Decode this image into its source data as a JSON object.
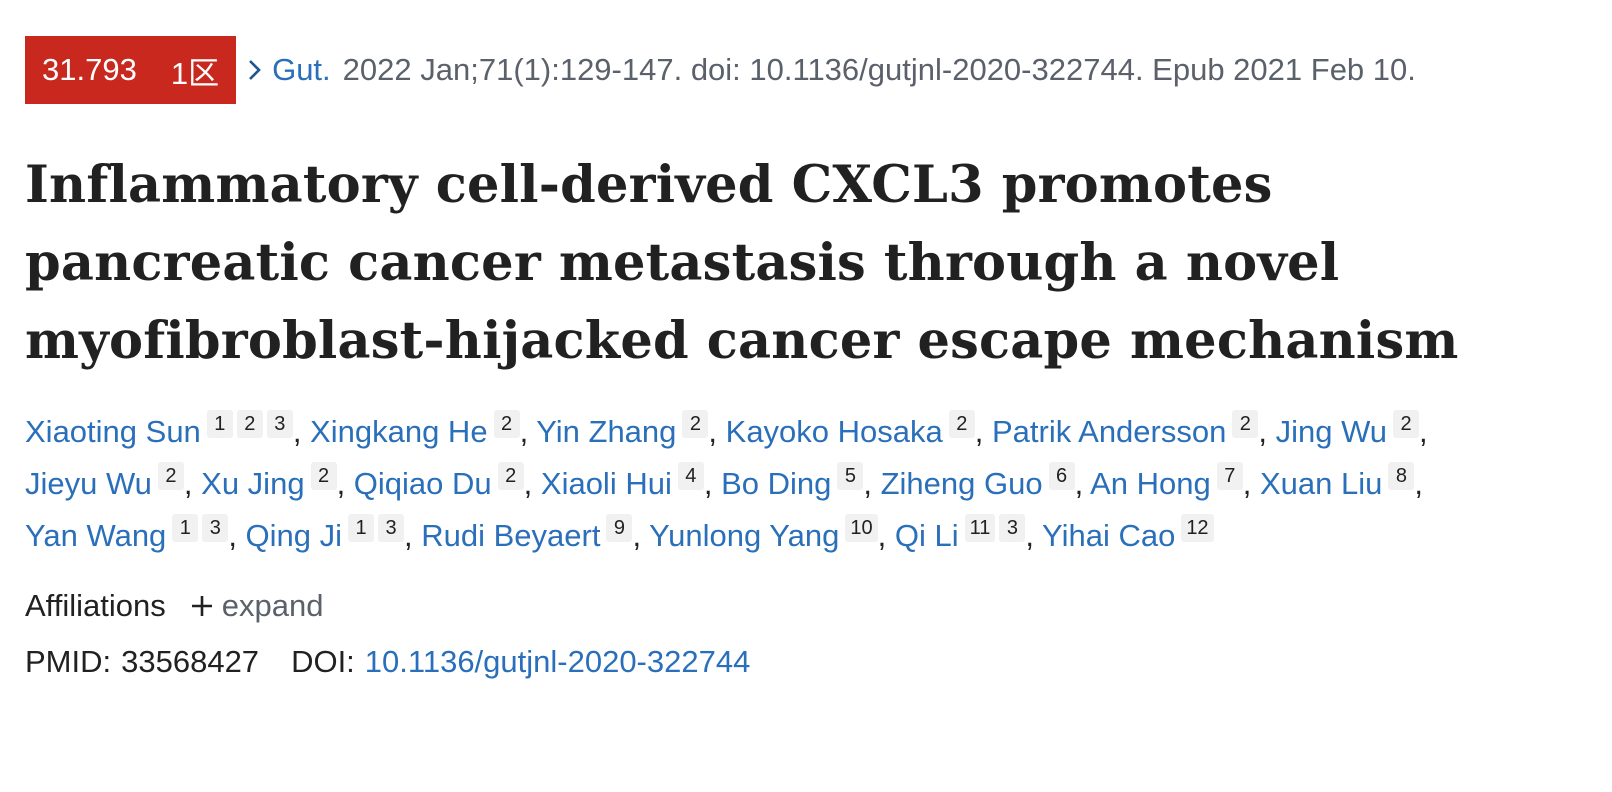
{
  "citation": {
    "impact_factor": "31.793",
    "zone": "1区",
    "journal": "Gut.",
    "details": "2022 Jan;71(1):129-147. doi: 10.1136/gutjnl-2020-322744. Epub 2021 Feb 10."
  },
  "article": {
    "title_lines": [
      "Inflammatory cell-derived CXCL3 promotes",
      "pancreatic cancer metastasis through a novel",
      "myofibroblast-hijacked cancer escape mechanism"
    ]
  },
  "authors": [
    {
      "name": "Xiaoting Sun",
      "affs": [
        "1",
        "2",
        "3"
      ]
    },
    {
      "name": "Xingkang He",
      "affs": [
        "2"
      ]
    },
    {
      "name": "Yin Zhang",
      "affs": [
        "2"
      ]
    },
    {
      "name": "Kayoko Hosaka",
      "affs": [
        "2"
      ]
    },
    {
      "name": "Patrik Andersson",
      "affs": [
        "2"
      ]
    },
    {
      "name": "Jing Wu",
      "affs": [
        "2"
      ]
    },
    {
      "name": "Jieyu Wu",
      "affs": [
        "2"
      ]
    },
    {
      "name": "Xu Jing",
      "affs": [
        "2"
      ]
    },
    {
      "name": "Qiqiao Du",
      "affs": [
        "2"
      ]
    },
    {
      "name": "Xiaoli Hui",
      "affs": [
        "4"
      ]
    },
    {
      "name": "Bo Ding",
      "affs": [
        "5"
      ]
    },
    {
      "name": "Ziheng Guo",
      "affs": [
        "6"
      ]
    },
    {
      "name": "An Hong",
      "affs": [
        "7"
      ]
    },
    {
      "name": "Xuan Liu",
      "affs": [
        "8"
      ]
    },
    {
      "name": "Yan Wang",
      "affs": [
        "1",
        "3"
      ]
    },
    {
      "name": "Qing Ji",
      "affs": [
        "1",
        "3"
      ]
    },
    {
      "name": "Rudi Beyaert",
      "affs": [
        "9"
      ]
    },
    {
      "name": "Yunlong Yang",
      "affs": [
        "10"
      ]
    },
    {
      "name": "Qi Li",
      "affs": [
        "11",
        "3"
      ]
    },
    {
      "name": "Yihai Cao",
      "affs": [
        "12"
      ]
    }
  ],
  "affiliations": {
    "label": "Affiliations",
    "expand_label": "expand"
  },
  "identifiers": {
    "pmid_label": "PMID:",
    "pmid": "33568427",
    "doi_label": "DOI:",
    "doi": "10.1136/gutjnl-2020-322744"
  },
  "icons": {
    "chevron": "chevron-right-icon",
    "plus": "plus-icon"
  },
  "colors": {
    "badge_bg": "#c8281e",
    "link": "#2a6fba",
    "muted": "#5b616b"
  }
}
